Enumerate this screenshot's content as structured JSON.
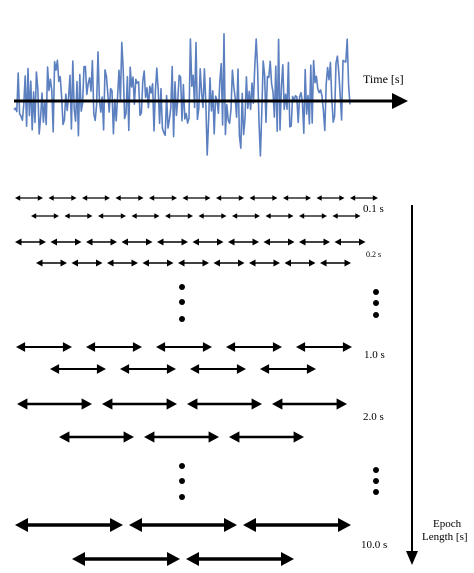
{
  "colors": {
    "signal": "#5b7fbf",
    "ink": "#000000",
    "background": "#ffffff"
  },
  "labels": {
    "time_axis": "Time [s]",
    "epoch_axis_line1": "Epoch",
    "epoch_axis_line2": "Length [s]",
    "epoch_0_1": "0.1 s",
    "epoch_0_2": "0.2 s",
    "epoch_1_0": "1.0 s",
    "epoch_2_0": "2.0 s",
    "epoch_10_0": "10.0 s"
  },
  "epoch_groups": [
    {
      "name": "epoch-0-1",
      "label_key": "epoch_0_1"
    },
    {
      "name": "epoch-0-2",
      "label_key": "epoch_0_2"
    },
    {
      "name": "epoch-1-0",
      "label_key": "epoch_1_0"
    },
    {
      "name": "epoch-2-0",
      "label_key": "epoch_2_0"
    },
    {
      "name": "epoch-10-0",
      "label_key": "epoch_10_0"
    }
  ]
}
